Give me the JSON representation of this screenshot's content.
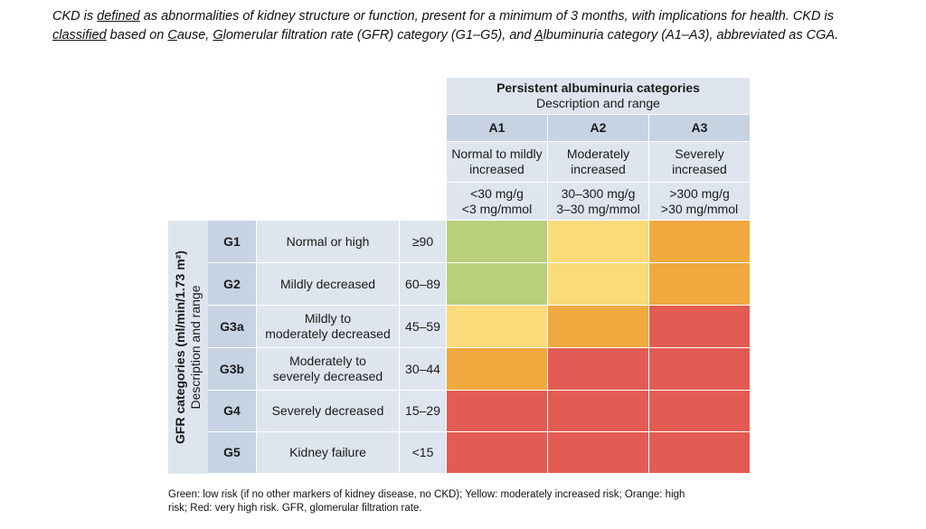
{
  "intro": {
    "s1": "CKD is ",
    "defined": "defined",
    "s2": " as abnormalities of kidney structure or function, present for a minimum of 3 months, with implications for health. CKD is ",
    "classified": "classified",
    "s3": " based on ",
    "c": "C",
    "cause": "ause, ",
    "g": "G",
    "gfr": "lomerular filtration rate (GFR) category (G1–G5), and ",
    "a": "A",
    "alb": "lbuminuria category (A1–A3), abbreviated as CGA."
  },
  "albuminuria": {
    "title": "Persistent albuminuria categories",
    "subtitle": "Description and range",
    "columns": [
      {
        "code": "A1",
        "desc1": "Normal to mildly",
        "desc2": "increased",
        "range1": "<30 mg/g",
        "range2": "<3 mg/mmol"
      },
      {
        "code": "A2",
        "desc1": "Moderately",
        "desc2": "increased",
        "range1": "30–300 mg/g",
        "range2": "3–30 mg/mmol"
      },
      {
        "code": "A3",
        "desc1": "Severely",
        "desc2": "increased",
        "range1": ">300 mg/g",
        "range2": ">30 mg/mmol"
      }
    ]
  },
  "gfr": {
    "axis_label": "GFR categories (ml/min/1.73 m²)",
    "axis_sublabel": "Description and range",
    "rows": [
      {
        "code": "G1",
        "desc1": "Normal or high",
        "desc2": "",
        "range": "≥90",
        "risk": [
          "low",
          "moderate",
          "high"
        ]
      },
      {
        "code": "G2",
        "desc1": "Mildly decreased",
        "desc2": "",
        "range": "60–89",
        "risk": [
          "low",
          "moderate",
          "high"
        ]
      },
      {
        "code": "G3a",
        "desc1": "Mildly to",
        "desc2": "moderately decreased",
        "range": "45–59",
        "risk": [
          "moderate",
          "high",
          "very_high"
        ]
      },
      {
        "code": "G3b",
        "desc1": "Moderately to",
        "desc2": "severely decreased",
        "range": "30–44",
        "risk": [
          "high",
          "very_high",
          "very_high"
        ]
      },
      {
        "code": "G4",
        "desc1": "Severely decreased",
        "desc2": "",
        "range": "15–29",
        "risk": [
          "very_high",
          "very_high",
          "very_high"
        ]
      },
      {
        "code": "G5",
        "desc1": "Kidney failure",
        "desc2": "",
        "range": "<15",
        "risk": [
          "very_high",
          "very_high",
          "very_high"
        ]
      }
    ]
  },
  "risk_colors": {
    "low": "#b9cf7a",
    "moderate": "#fadb7a",
    "high": "#f0a93e",
    "very_high": "#e25c53"
  },
  "footer": {
    "line1": "Green: low risk (if no other markers of kidney disease, no CKD); Yellow: moderately increased risk; Orange: high",
    "line2": "risk; Red: very high risk. GFR, glomerular filtration rate."
  }
}
